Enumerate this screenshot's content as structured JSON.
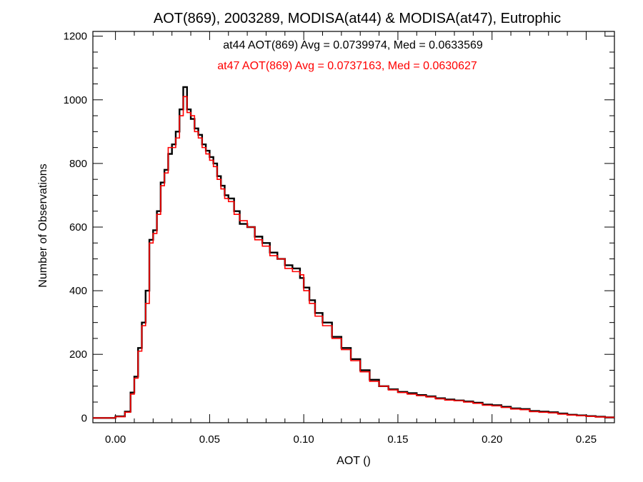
{
  "chart_data": {
    "type": "line",
    "title": "AOT(869), 2003289, MODISA(at44) & MODISA(at47), Eutrophic",
    "xlabel": "AOT ()",
    "ylabel": "Number of Observations",
    "xlim": [
      -0.012,
      0.265
    ],
    "ylim": [
      -15,
      1215
    ],
    "x_ticks": [
      0.0,
      0.05,
      0.1,
      0.15,
      0.2,
      0.25
    ],
    "x_tick_labels": [
      "0.00",
      "0.05",
      "0.10",
      "0.15",
      "0.20",
      "0.25"
    ],
    "y_ticks": [
      0,
      200,
      400,
      600,
      800,
      1000,
      1200
    ],
    "y_tick_labels": [
      "0",
      "200",
      "400",
      "600",
      "800",
      "1000",
      "1200"
    ],
    "grid": false,
    "step_style": "histogram",
    "annotations": [
      {
        "text": "at44 AOT(869) Avg = 0.0739974, Med = 0.0633569",
        "color": "#000000"
      },
      {
        "text": "at47 AOT(869) Avg = 0.0737163, Med = 0.0630627",
        "color": "#ff0000"
      }
    ],
    "series": [
      {
        "color": "#000000",
        "x": [
          -0.012,
          0.0,
          0.005,
          0.008,
          0.01,
          0.012,
          0.014,
          0.016,
          0.018,
          0.02,
          0.022,
          0.024,
          0.026,
          0.028,
          0.03,
          0.032,
          0.034,
          0.036,
          0.038,
          0.04,
          0.042,
          0.044,
          0.046,
          0.048,
          0.05,
          0.052,
          0.054,
          0.056,
          0.058,
          0.06,
          0.063,
          0.066,
          0.07,
          0.074,
          0.078,
          0.082,
          0.086,
          0.09,
          0.094,
          0.098,
          0.1,
          0.103,
          0.106,
          0.11,
          0.115,
          0.12,
          0.125,
          0.13,
          0.135,
          0.14,
          0.145,
          0.15,
          0.155,
          0.16,
          0.165,
          0.17,
          0.175,
          0.18,
          0.185,
          0.19,
          0.195,
          0.2,
          0.205,
          0.21,
          0.215,
          0.22,
          0.225,
          0.23,
          0.235,
          0.24,
          0.245,
          0.25,
          0.255,
          0.26
        ],
        "y": [
          0,
          5,
          20,
          80,
          130,
          220,
          300,
          400,
          560,
          590,
          650,
          740,
          780,
          830,
          860,
          900,
          970,
          1040,
          970,
          940,
          910,
          890,
          860,
          840,
          820,
          800,
          760,
          730,
          700,
          690,
          650,
          610,
          600,
          570,
          550,
          520,
          500,
          480,
          470,
          440,
          410,
          370,
          330,
          300,
          255,
          220,
          185,
          150,
          120,
          100,
          90,
          82,
          78,
          72,
          68,
          62,
          58,
          55,
          52,
          48,
          42,
          40,
          35,
          30,
          28,
          22,
          20,
          18,
          14,
          10,
          8,
          6,
          4,
          2
        ]
      },
      {
        "color": "#ff0000",
        "x": [
          -0.012,
          0.0,
          0.005,
          0.008,
          0.01,
          0.012,
          0.014,
          0.016,
          0.018,
          0.02,
          0.022,
          0.024,
          0.026,
          0.028,
          0.03,
          0.032,
          0.034,
          0.036,
          0.038,
          0.04,
          0.042,
          0.044,
          0.046,
          0.048,
          0.05,
          0.052,
          0.054,
          0.056,
          0.058,
          0.06,
          0.063,
          0.066,
          0.07,
          0.074,
          0.078,
          0.082,
          0.086,
          0.09,
          0.094,
          0.098,
          0.1,
          0.103,
          0.106,
          0.11,
          0.115,
          0.12,
          0.125,
          0.13,
          0.135,
          0.14,
          0.145,
          0.15,
          0.155,
          0.16,
          0.165,
          0.17,
          0.175,
          0.18,
          0.185,
          0.19,
          0.195,
          0.2,
          0.205,
          0.21,
          0.215,
          0.22,
          0.225,
          0.23,
          0.235,
          0.24,
          0.245,
          0.25,
          0.255,
          0.26
        ],
        "y": [
          0,
          4,
          18,
          75,
          125,
          210,
          290,
          360,
          550,
          580,
          640,
          730,
          770,
          850,
          850,
          880,
          950,
          1010,
          960,
          950,
          900,
          880,
          850,
          830,
          810,
          790,
          750,
          720,
          690,
          680,
          640,
          620,
          600,
          560,
          540,
          510,
          500,
          470,
          460,
          450,
          400,
          360,
          320,
          290,
          250,
          215,
          180,
          145,
          115,
          100,
          88,
          80,
          75,
          70,
          66,
          60,
          56,
          54,
          50,
          46,
          40,
          38,
          33,
          28,
          26,
          20,
          18,
          16,
          12,
          9,
          7,
          5,
          3,
          2
        ]
      }
    ]
  }
}
